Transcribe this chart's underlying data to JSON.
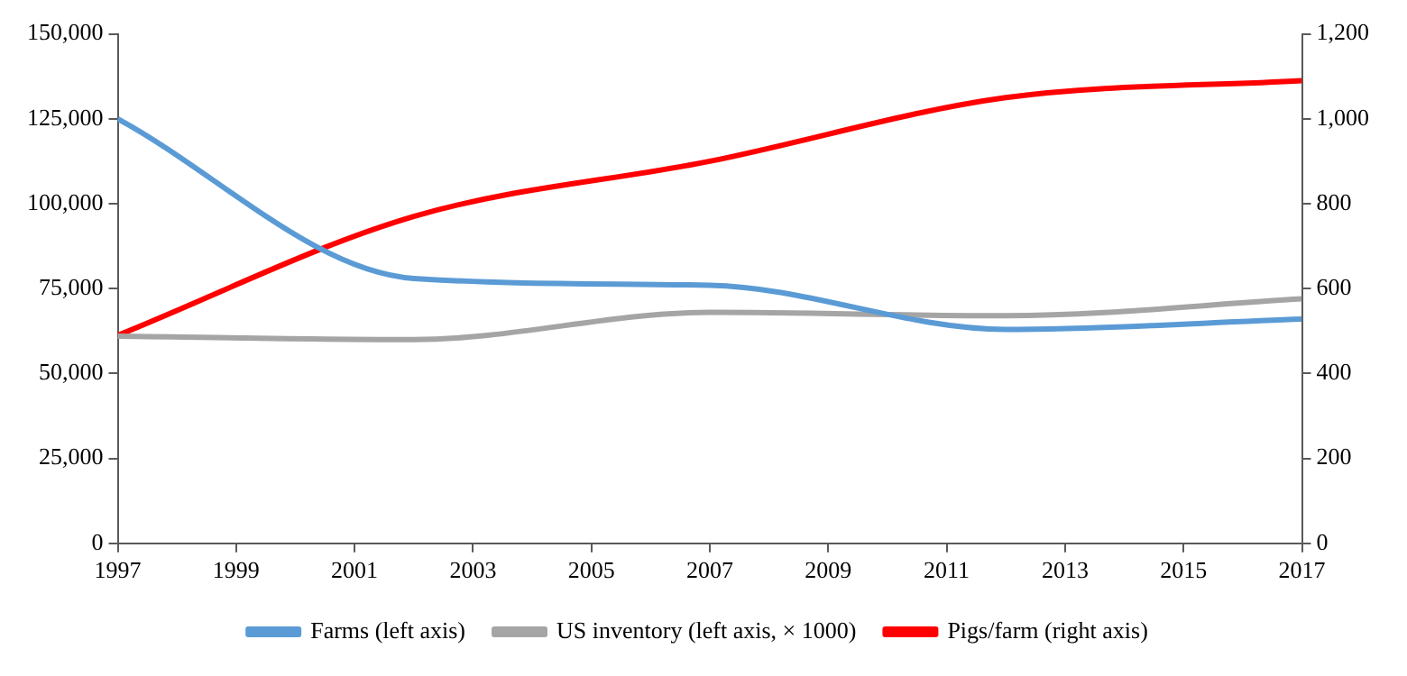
{
  "chart_data": {
    "type": "line",
    "x": [
      1997,
      2002,
      2007,
      2012,
      2017
    ],
    "xlim": [
      1997,
      2017
    ],
    "xticks": [
      1997,
      1999,
      2001,
      2003,
      2005,
      2007,
      2009,
      2011,
      2013,
      2015,
      2017
    ],
    "ylim": [
      0,
      150000
    ],
    "yticks": [
      {
        "value": 0,
        "label": "0"
      },
      {
        "value": 25000,
        "label": "25,000"
      },
      {
        "value": 50000,
        "label": "50,000"
      },
      {
        "value": 75000,
        "label": "75,000"
      },
      {
        "value": 100000,
        "label": "100,000"
      },
      {
        "value": 125000,
        "label": "125,000"
      },
      {
        "value": 150000,
        "label": "150,000"
      }
    ],
    "y2lim": [
      0,
      1200
    ],
    "y2ticks": [
      0,
      200,
      400,
      600,
      800,
      {
        "value": 1000,
        "label": "1,000"
      },
      {
        "value": 1200,
        "label": "1,200"
      }
    ],
    "series": [
      {
        "name": "Farms (left axis)",
        "color": "#5b9bd5",
        "values": [
          125000,
          78000,
          76000,
          63000,
          66000
        ]
      },
      {
        "name": "US inventory (left axis, × 1000)",
        "color": "#a5a5a5",
        "values": [
          61000,
          60000,
          68000,
          67000,
          72000
        ]
      },
      {
        "name": "Pigs/farm (right axis)",
        "color": "#ff0000",
        "axis": "y2",
        "values": [
          490,
          770,
          900,
          1050,
          1090
        ]
      }
    ],
    "grid": false,
    "legend": "bottom",
    "marker": "none",
    "line_style": "solid"
  }
}
